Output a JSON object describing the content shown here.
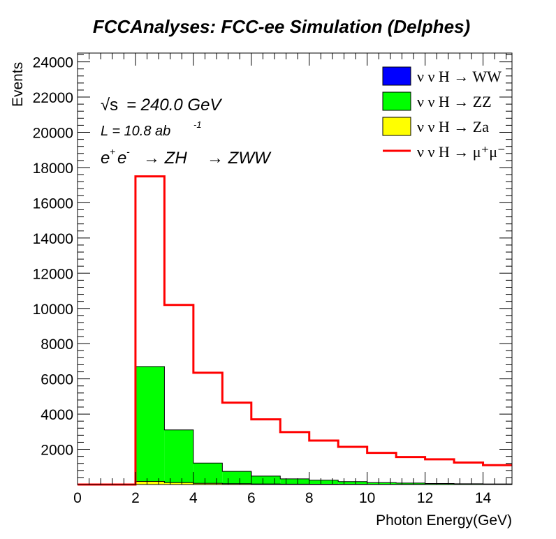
{
  "chart_data": {
    "type": "histogram",
    "title": "FCCAnalyses: FCC-ee Simulation (Delphes)",
    "xlabel": "Photon Energy(GeV)",
    "ylabel": "Events",
    "xlim": [
      0,
      15
    ],
    "ylim": [
      0,
      24500
    ],
    "x_ticks": [
      0,
      2,
      4,
      6,
      8,
      10,
      12,
      14
    ],
    "y_ticks": [
      2000,
      4000,
      6000,
      8000,
      10000,
      12000,
      14000,
      16000,
      18000,
      20000,
      22000,
      24000
    ],
    "bin_edges": [
      0,
      1,
      2,
      3,
      4,
      5,
      6,
      7,
      8,
      9,
      10,
      11,
      12,
      13,
      14,
      15
    ],
    "annotations": {
      "sqrt_s_sym": "√s",
      "sqrt_s_val": "= 240.0 GeV",
      "lumi_text": "L = 10.8 ab",
      "lumi_exp": "-1",
      "proc_e": "e",
      "proc_plus": "+",
      "proc_e2": "e",
      "proc_minus": "-",
      "proc_rest1": "→ ZH",
      "proc_rest2": "→ ZWW"
    },
    "legend_position": "top-right",
    "series": [
      {
        "name": "ν ν H → WW",
        "style": "filled",
        "color": "#0000ff",
        "values": [
          0,
          0,
          0,
          0,
          0,
          0,
          0,
          0,
          0,
          0,
          0,
          0,
          0,
          0,
          0
        ]
      },
      {
        "name": "ν ν H → ZZ",
        "style": "filled-stacked",
        "color": "#00ff00",
        "values": [
          0,
          0,
          6700,
          3100,
          1220,
          750,
          480,
          320,
          250,
          170,
          110,
          85,
          60,
          45,
          35
        ]
      },
      {
        "name": "ν ν H → Za",
        "style": "filled",
        "color": "#ffff00",
        "values": [
          0,
          0,
          180,
          110,
          70,
          50,
          35,
          25,
          18,
          14,
          10,
          8,
          6,
          5,
          4
        ]
      },
      {
        "name": "ν ν H → μ⁺μ⁻",
        "style": "step-line",
        "color": "#ff0000",
        "values": [
          0,
          0,
          17500,
          10200,
          6350,
          4650,
          3700,
          2980,
          2500,
          2140,
          1800,
          1560,
          1430,
          1250,
          1100
        ]
      }
    ]
  }
}
